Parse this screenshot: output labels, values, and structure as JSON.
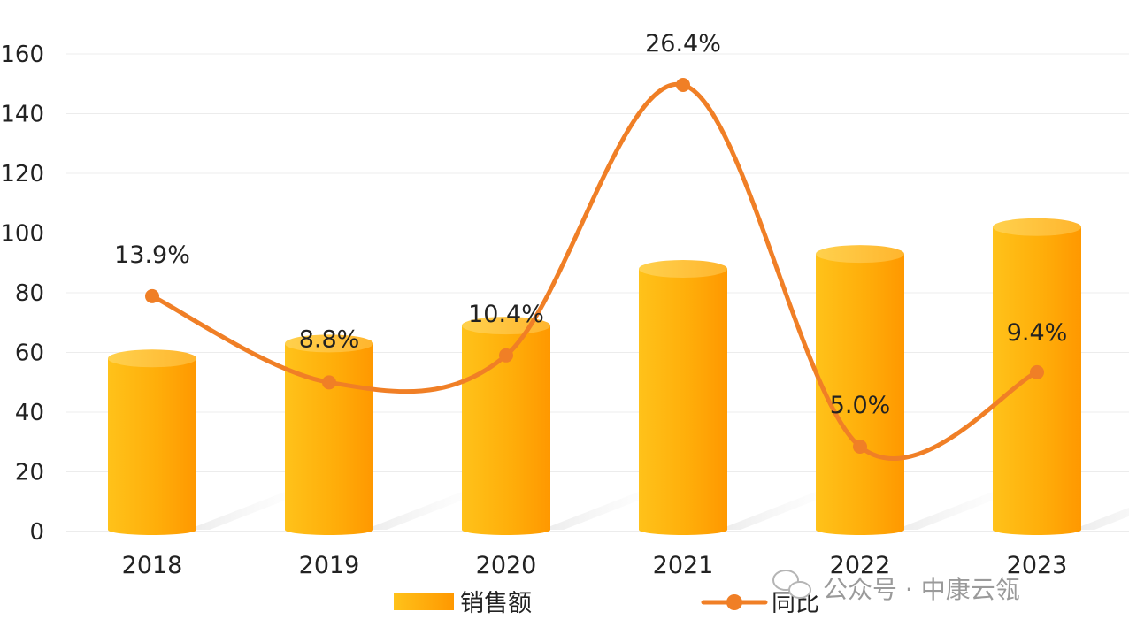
{
  "chart_data": {
    "type": "bar",
    "categories": [
      "2018",
      "2019",
      "2020",
      "2021",
      "2022",
      "2023"
    ],
    "ylim": [
      0,
      160
    ],
    "yticks": [
      0,
      20,
      40,
      60,
      80,
      100,
      120,
      140,
      160
    ],
    "grid": true,
    "legend_position": "bottom",
    "series": [
      {
        "name": "销售额",
        "type": "bar",
        "color": "#FFA500",
        "values": [
          58,
          63,
          69,
          88,
          93,
          102
        ]
      },
      {
        "name": "同比",
        "type": "line",
        "color": "#F07F26",
        "values": [
          13.9,
          8.8,
          10.4,
          26.4,
          5.0,
          9.4
        ],
        "labels": [
          "13.9%",
          "8.8%",
          "10.4%",
          "26.4%",
          "5.0%",
          "9.4%"
        ]
      }
    ]
  },
  "watermark": {
    "text": "公众号 · 中康云瓴",
    "icon": "wechat-icon"
  }
}
